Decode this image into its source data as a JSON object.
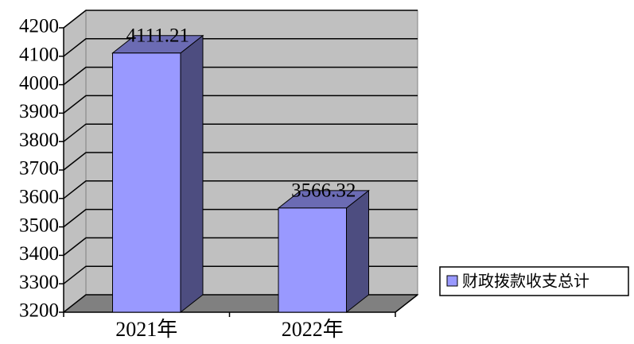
{
  "chart_data": {
    "type": "bar3d",
    "categories": [
      "2021年",
      "2022年"
    ],
    "series": [
      {
        "name": "财政拨款收支总计",
        "color": "#9999ff",
        "values": [
          4111.21,
          3566.32
        ]
      }
    ],
    "ylim": [
      3200,
      4200
    ],
    "yticks": [
      3200,
      3300,
      3400,
      3500,
      3600,
      3700,
      3800,
      3900,
      4000,
      4100,
      4200
    ],
    "grid": true
  }
}
